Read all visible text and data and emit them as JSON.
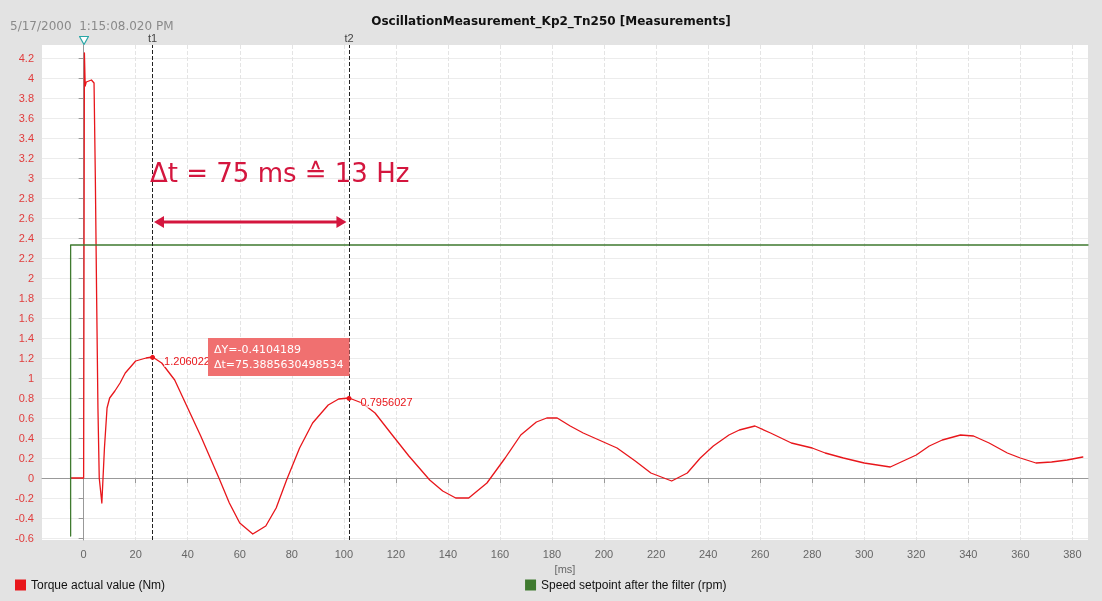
{
  "chart_data": {
    "type": "line",
    "title": "OscillationMeasurement_Kp2_Tn250 [Measurements]",
    "xlabel": "[ms]",
    "xlim": [
      -16,
      386
    ],
    "ylim": [
      -0.62,
      4.33
    ],
    "xticks": [
      0,
      20,
      40,
      60,
      80,
      100,
      120,
      140,
      160,
      180,
      200,
      220,
      240,
      260,
      280,
      300,
      320,
      340,
      360,
      380
    ],
    "yticks": [
      -0.6,
      -0.4,
      -0.2,
      0,
      0.2,
      0.4,
      0.6,
      0.8,
      1,
      1.2,
      1.4,
      1.6,
      1.8,
      2,
      2.2,
      2.4,
      2.6,
      2.8,
      3,
      3.2,
      3.4,
      3.6,
      3.8,
      4,
      4.2
    ],
    "grid": true,
    "legend": "bottom",
    "marker": "none",
    "line_style": "solid",
    "series": [
      {
        "name": "Torque actual value (Nm)",
        "color": "#e8161b",
        "x": [
          -5,
          0,
          0.3,
          0.6,
          1,
          3,
          4,
          4.5,
          5,
          5.5,
          6,
          7,
          8,
          9,
          10,
          12,
          14,
          16,
          20,
          24,
          26.5,
          30,
          35,
          40,
          45,
          52,
          56,
          60,
          65,
          70,
          74,
          78,
          83,
          88,
          94,
          98,
          102,
          107,
          112,
          118,
          125,
          133,
          138,
          143,
          148,
          155,
          162,
          168,
          174,
          178,
          182,
          187,
          192,
          205,
          212,
          218,
          226,
          232,
          237,
          242,
          248,
          252,
          258,
          264,
          272,
          280,
          285,
          292,
          300,
          305,
          310,
          315,
          320,
          325,
          330,
          337,
          342,
          348,
          355,
          360,
          366,
          372,
          378,
          384
        ],
        "values": [
          0,
          0,
          4.25,
          3.92,
          3.96,
          3.98,
          3.95,
          3.0,
          1.8,
          0.7,
          0.0,
          -0.25,
          0.3,
          0.7,
          0.8,
          0.87,
          0.95,
          1.05,
          1.17,
          1.2,
          1.21,
          1.15,
          0.98,
          0.7,
          0.42,
          0.0,
          -0.25,
          -0.45,
          -0.56,
          -0.48,
          -0.3,
          -0.02,
          0.3,
          0.55,
          0.73,
          0.79,
          0.8,
          0.75,
          0.65,
          0.45,
          0.22,
          -0.02,
          -0.13,
          -0.2,
          -0.2,
          -0.05,
          0.2,
          0.43,
          0.56,
          0.6,
          0.6,
          0.52,
          0.45,
          0.3,
          0.17,
          0.05,
          -0.03,
          0.05,
          0.2,
          0.32,
          0.43,
          0.48,
          0.52,
          0.45,
          0.35,
          0.3,
          0.25,
          0.2,
          0.15,
          0.13,
          0.11,
          0.17,
          0.23,
          0.32,
          0.38,
          0.43,
          0.42,
          0.35,
          0.25,
          0.2,
          0.15,
          0.16,
          0.18,
          0.21
        ]
      },
      {
        "name": "Speed setpoint after the filter (rpm)",
        "color": "#3f7a2f",
        "type": "step",
        "x": [
          -5,
          0,
          386
        ],
        "values": [
          -0.58,
          2.33,
          2.33
        ]
      }
    ],
    "ref_lines": [
      {
        "axis": "x",
        "value": 26.5,
        "label": "t1",
        "color": "#222222",
        "line_style": "dashed"
      },
      {
        "axis": "x",
        "value": 102,
        "label": "t2",
        "color": "#222222",
        "line_style": "dashed"
      }
    ],
    "annotations": [
      "5/17/2000  1:15:08.020 PM",
      "Δt = 75 ms ≙ 13 Hz",
      "ΔY=-0.4104189\nΔt=75.3885630498534",
      {
        "text": "1.206022",
        "x": 26.5,
        "y": 1.206
      },
      {
        "text": "0.7956027",
        "x": 102,
        "y": 0.796
      }
    ]
  }
}
